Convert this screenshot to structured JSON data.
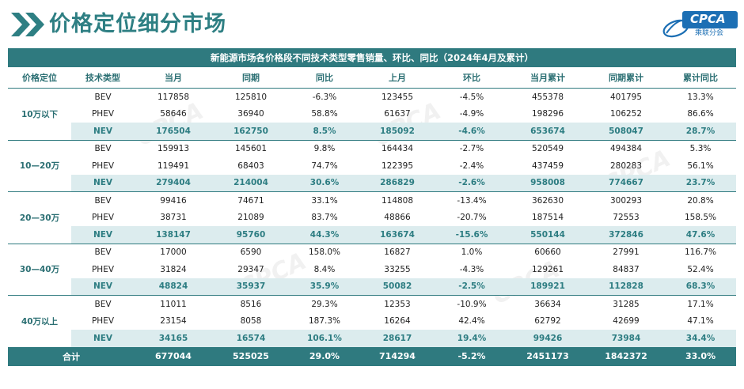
{
  "page": {
    "title": "价格定位细分市场",
    "logo_text": "CPCA",
    "logo_sub": "乘联分会"
  },
  "table": {
    "caption": "新能源市场各价格段不同技术类型零售销量、环比、同比（2024年4月及累计）",
    "headers": [
      "价格定位",
      "技术类型",
      "当月",
      "同期",
      "同比",
      "上月",
      "环比",
      "当月累计",
      "同期累计",
      "累计同比"
    ],
    "groups": [
      {
        "label": "10万以下",
        "rows": [
          [
            "BEV",
            "117858",
            "125810",
            "-6.3%",
            "123455",
            "-4.5%",
            "455378",
            "401795",
            "13.3%"
          ],
          [
            "PHEV",
            "58646",
            "36940",
            "58.8%",
            "61637",
            "-4.9%",
            "198296",
            "106252",
            "86.6%"
          ],
          [
            "NEV",
            "176504",
            "162750",
            "8.5%",
            "185092",
            "-4.6%",
            "653674",
            "508047",
            "28.7%"
          ]
        ]
      },
      {
        "label": "10—20万",
        "rows": [
          [
            "BEV",
            "159913",
            "145601",
            "9.8%",
            "164434",
            "-2.7%",
            "520549",
            "494384",
            "5.3%"
          ],
          [
            "PHEV",
            "119491",
            "68403",
            "74.7%",
            "122395",
            "-2.4%",
            "437459",
            "280283",
            "56.1%"
          ],
          [
            "NEV",
            "279404",
            "214004",
            "30.6%",
            "286829",
            "-2.6%",
            "958008",
            "774667",
            "23.7%"
          ]
        ]
      },
      {
        "label": "20—30万",
        "rows": [
          [
            "BEV",
            "99416",
            "74671",
            "33.1%",
            "114808",
            "-13.4%",
            "362630",
            "300293",
            "20.8%"
          ],
          [
            "PHEV",
            "38731",
            "21089",
            "83.7%",
            "48866",
            "-20.7%",
            "187514",
            "72553",
            "158.5%"
          ],
          [
            "NEV",
            "138147",
            "95760",
            "44.3%",
            "163674",
            "-15.6%",
            "550144",
            "372846",
            "47.6%"
          ]
        ]
      },
      {
        "label": "30—40万",
        "rows": [
          [
            "BEV",
            "17000",
            "6590",
            "158.0%",
            "16827",
            "1.0%",
            "60660",
            "27991",
            "116.7%"
          ],
          [
            "PHEV",
            "31824",
            "29347",
            "8.4%",
            "33255",
            "-4.3%",
            "129261",
            "84837",
            "52.4%"
          ],
          [
            "NEV",
            "48824",
            "35937",
            "35.9%",
            "50082",
            "-2.5%",
            "189921",
            "112828",
            "68.3%"
          ]
        ]
      },
      {
        "label": "40万以上",
        "rows": [
          [
            "BEV",
            "11011",
            "8516",
            "29.3%",
            "12353",
            "-10.9%",
            "36634",
            "31285",
            "17.1%"
          ],
          [
            "PHEV",
            "23154",
            "8058",
            "187.3%",
            "16264",
            "42.4%",
            "62792",
            "42699",
            "47.1%"
          ],
          [
            "NEV",
            "34165",
            "16574",
            "106.1%",
            "28617",
            "19.4%",
            "99426",
            "73984",
            "34.4%"
          ]
        ]
      }
    ],
    "total": [
      "合计",
      "677044",
      "525025",
      "29.0%",
      "714294",
      "-5.2%",
      "2451173",
      "1842372",
      "33.0%"
    ]
  },
  "colors": {
    "accent": "#2f7a7f",
    "nev_row": "#dcecee",
    "logo": "#1c6fb4"
  }
}
